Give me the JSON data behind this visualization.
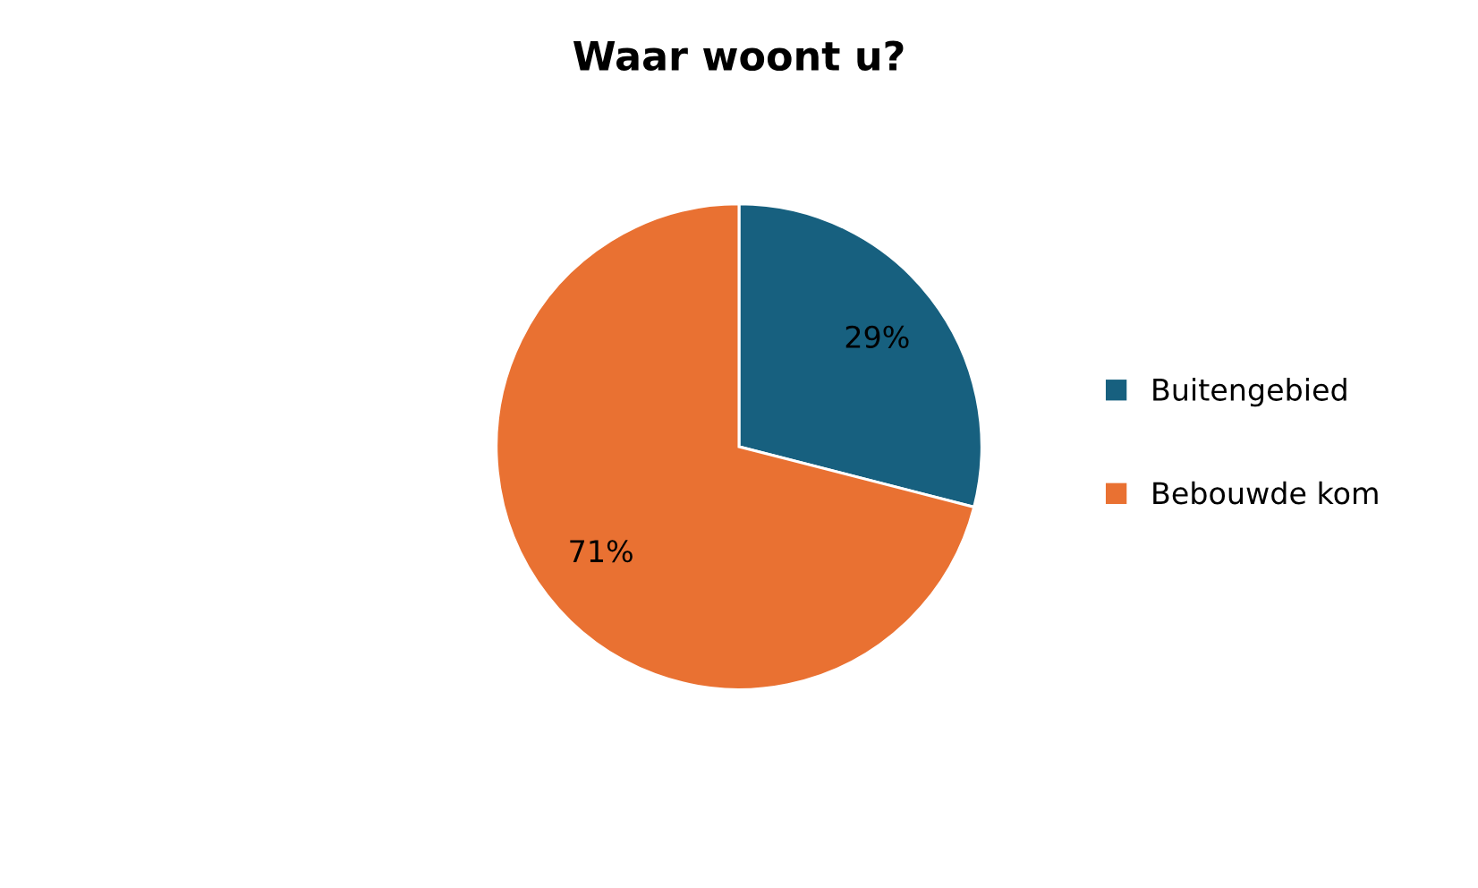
{
  "chart_data": {
    "type": "pie",
    "title": "Waar woont u?",
    "categories": [
      "Buitengebied",
      "Bebouwde kom"
    ],
    "values": [
      29,
      71
    ],
    "colors": [
      "#17607f",
      "#e97132"
    ],
    "value_labels": [
      "29%",
      "71%"
    ],
    "legend": "right"
  }
}
